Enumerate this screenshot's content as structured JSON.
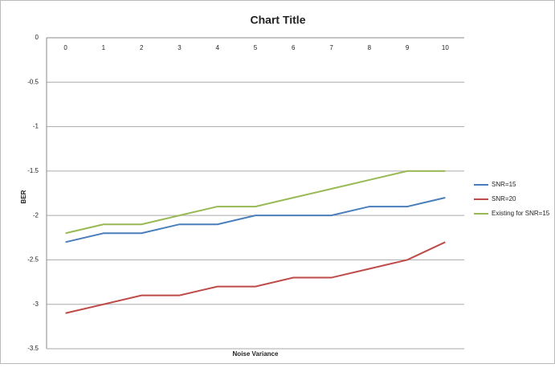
{
  "chart_data": {
    "type": "line",
    "title": "Chart Title",
    "x_label": "Noise Variance",
    "y_label": "BER",
    "categories": [
      "0",
      "1",
      "2",
      "3",
      "4",
      "5",
      "6",
      "7",
      "8",
      "9",
      "10"
    ],
    "series": [
      {
        "name": "SNR=15",
        "color": "#4a7ebb",
        "values": [
          -2.3,
          -2.2,
          -2.2,
          -2.1,
          -2.1,
          -2.0,
          -2.0,
          -2.0,
          -1.9,
          -1.9,
          -1.8
        ]
      },
      {
        "name": "SNR=20",
        "color": "#be4b48",
        "values": [
          -3.1,
          -3.0,
          -2.9,
          -2.9,
          -2.8,
          -2.8,
          -2.7,
          -2.7,
          -2.6,
          -2.5,
          -2.3
        ]
      },
      {
        "name": "Existing for SNR=15",
        "color": "#98b954",
        "values": [
          -2.2,
          -2.1,
          -2.1,
          -2.0,
          -1.9,
          -1.9,
          -1.8,
          -1.7,
          -1.6,
          -1.5,
          -1.5
        ]
      }
    ],
    "ylim": [
      -3.5,
      0
    ],
    "yticks": [
      0,
      -0.5,
      -1,
      -1.5,
      -2,
      -2.5,
      -3,
      -3.5
    ],
    "grid": true,
    "legend": "right"
  }
}
